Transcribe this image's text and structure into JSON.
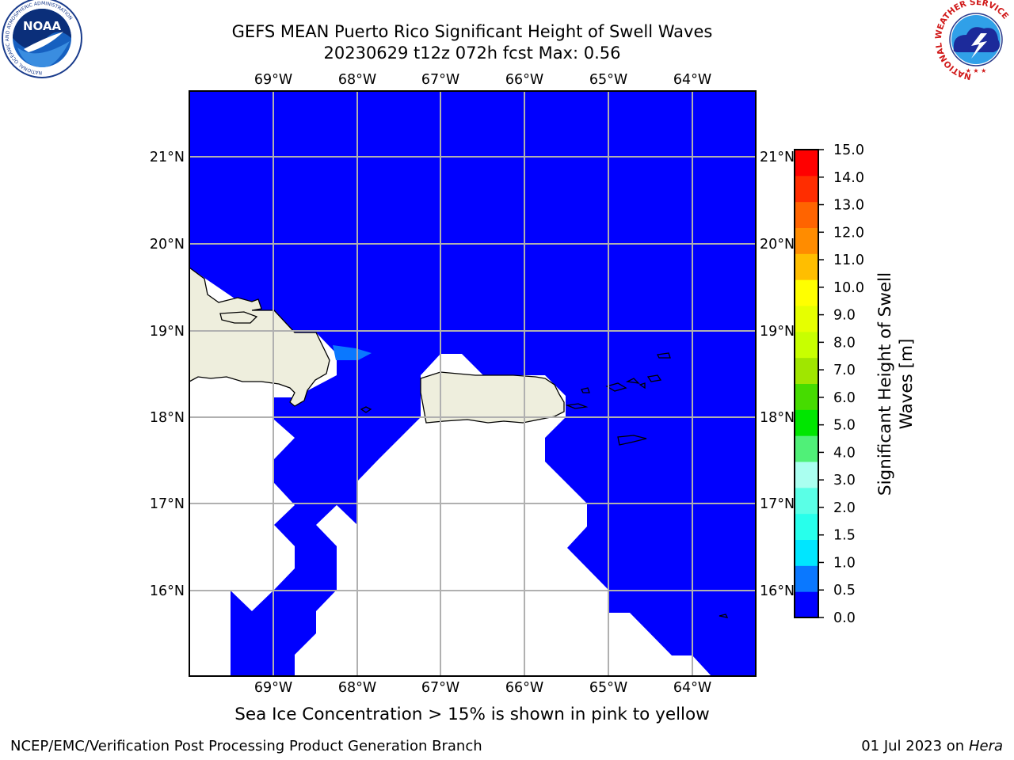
{
  "title": {
    "line1": "GEFS MEAN Puerto Rico Significant Height of Swell Waves",
    "line2": "20230629 t12z 072h fcst   Max: 0.56"
  },
  "caption": "Sea Ice Concentration > 15% is shown in pink to yellow",
  "footer": {
    "left": "NCEP/EMC/Verification Post Processing Product Generation Branch",
    "right_date": "01 Jul 2023 on ",
    "right_host": "Hera"
  },
  "logos": {
    "noaa": {
      "text": "NOAA",
      "ring_text": "NATIONAL OCEANIC AND ATMOSPHERIC ADMINISTRATION",
      "bottom_text": "U.S. DEPARTMENT OF COMMERCE"
    },
    "nws": {
      "ring_text": "NATIONAL WEATHER SERVICE"
    }
  },
  "map": {
    "lon_labels": [
      "69°W",
      "68°W",
      "67°W",
      "66°W",
      "65°W",
      "64°W"
    ],
    "lat_labels": [
      "21°N",
      "20°N",
      "19°N",
      "18°N",
      "17°N",
      "16°N"
    ],
    "lon_range": [
      -70.0,
      -63.25
    ],
    "lat_range": [
      15.0,
      21.75
    ],
    "grid": true,
    "colors": {
      "ocean_value": "#0000ff",
      "land": "#eeeedd",
      "no_data": "#ffffff"
    }
  },
  "colorbar": {
    "label_line1": "Significant Height of Swell",
    "label_line2": "Waves [m]",
    "ticks": [
      "0.0",
      "0.5",
      "1.0",
      "1.5",
      "2.0",
      "3.0",
      "4.0",
      "5.0",
      "6.0",
      "7.0",
      "8.0",
      "9.0",
      "10.0",
      "11.0",
      "12.0",
      "13.0",
      "14.0",
      "15.0"
    ],
    "colors": [
      "#0000ff",
      "#0a78ff",
      "#00e6ff",
      "#28ffeb",
      "#5affe6",
      "#aafff0",
      "#50f078",
      "#00e600",
      "#46dc00",
      "#a0e600",
      "#c8ff00",
      "#e6ff00",
      "#ffff00",
      "#ffbe00",
      "#ff8c00",
      "#ff6400",
      "#ff2d00",
      "#ff0000"
    ]
  },
  "chart_data": {
    "type": "heatmap",
    "title": "GEFS MEAN Puerto Rico Significant Height of Swell Waves",
    "subtitle": "20230629 t12z 072h fcst   Max: 0.56",
    "variable": "Significant Height of Swell Waves [m]",
    "max_value": 0.56,
    "x_range": [
      -70.0,
      -63.25
    ],
    "y_range": [
      15.0,
      21.75
    ],
    "levels": [
      0.0,
      0.5,
      1.0,
      1.5,
      2.0,
      3.0,
      4.0,
      5.0,
      6.0,
      7.0,
      8.0,
      9.0,
      10.0,
      11.0,
      12.0,
      13.0,
      14.0,
      15.0
    ]
  }
}
